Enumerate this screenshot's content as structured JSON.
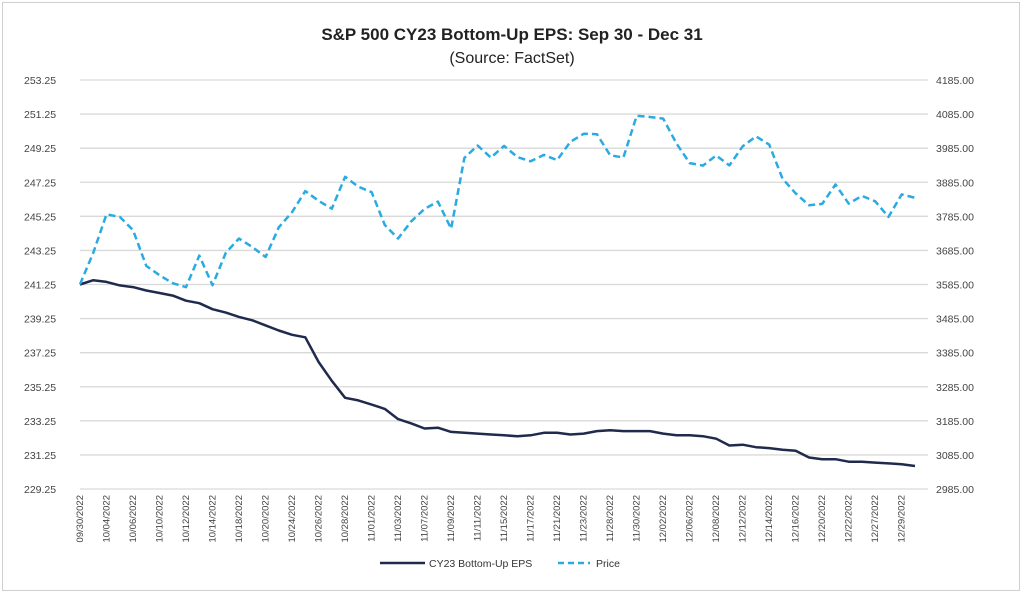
{
  "chart_data": {
    "type": "line",
    "title": "S&P 500 CY23 Bottom-Up EPS: Sep 30 - Dec 31",
    "subtitle": "(Source: FactSet)",
    "xlabel": "",
    "ylabel_left": "",
    "ylabel_right": "",
    "x": [
      "09/30/2022",
      "10/03/2022",
      "10/04/2022",
      "10/05/2022",
      "10/06/2022",
      "10/07/2022",
      "10/10/2022",
      "10/11/2022",
      "10/12/2022",
      "10/13/2022",
      "10/14/2022",
      "10/17/2022",
      "10/18/2022",
      "10/19/2022",
      "10/20/2022",
      "10/21/2022",
      "10/24/2022",
      "10/25/2022",
      "10/26/2022",
      "10/27/2022",
      "10/28/2022",
      "10/31/2022",
      "11/01/2022",
      "11/02/2022",
      "11/03/2022",
      "11/04/2022",
      "11/07/2022",
      "11/08/2022",
      "11/09/2022",
      "11/10/2022",
      "11/11/2022",
      "11/14/2022",
      "11/15/2022",
      "11/16/2022",
      "11/17/2022",
      "11/18/2022",
      "11/21/2022",
      "11/22/2022",
      "11/23/2022",
      "11/25/2022",
      "11/28/2022",
      "11/29/2022",
      "11/30/2022",
      "12/01/2022",
      "12/02/2022",
      "12/05/2022",
      "12/06/2022",
      "12/07/2022",
      "12/08/2022",
      "12/09/2022",
      "12/12/2022",
      "12/13/2022",
      "12/14/2022",
      "12/15/2022",
      "12/16/2022",
      "12/19/2022",
      "12/20/2022",
      "12/21/2022",
      "12/22/2022",
      "12/23/2022",
      "12/27/2022",
      "12/28/2022",
      "12/29/2022",
      "12/30/2022"
    ],
    "x_tick_labels": [
      "09/30/2022",
      "10/04/2022",
      "10/06/2022",
      "10/10/2022",
      "10/12/2022",
      "10/14/2022",
      "10/18/2022",
      "10/20/2022",
      "10/24/2022",
      "10/26/2022",
      "10/28/2022",
      "11/01/2022",
      "11/03/2022",
      "11/07/2022",
      "11/09/2022",
      "11/11/2022",
      "11/15/2022",
      "11/17/2022",
      "11/21/2022",
      "11/23/2022",
      "11/28/2022",
      "11/30/2022",
      "12/02/2022",
      "12/06/2022",
      "12/08/2022",
      "12/12/2022",
      "12/14/2022",
      "12/16/2022",
      "12/20/2022",
      "12/22/2022",
      "12/27/2022",
      "12/29/2022"
    ],
    "y_left": {
      "range": [
        229.25,
        253.25
      ],
      "ticks": [
        "229.25",
        "231.25",
        "233.25",
        "235.25",
        "237.25",
        "239.25",
        "241.25",
        "243.25",
        "245.25",
        "247.25",
        "249.25",
        "251.25",
        "253.25"
      ]
    },
    "y_right": {
      "range": [
        2985,
        4185
      ],
      "ticks": [
        "2985.00",
        "3085.00",
        "3185.00",
        "3285.00",
        "3385.00",
        "3485.00",
        "3585.00",
        "3685.00",
        "3785.00",
        "3885.00",
        "3985.00",
        "4085.00",
        "4185.00"
      ]
    },
    "grid": true,
    "legend_position": "bottom",
    "series": [
      {
        "name": "CY23 Bottom-Up EPS",
        "axis": "left",
        "style": "solid",
        "color": "#1f2a4d",
        "values": [
          241.25,
          241.5,
          241.4,
          241.2,
          241.1,
          240.9,
          240.75,
          240.6,
          240.3,
          240.15,
          239.8,
          239.6,
          239.35,
          239.15,
          238.85,
          238.55,
          238.3,
          238.15,
          236.7,
          235.6,
          234.6,
          234.45,
          234.2,
          233.95,
          233.35,
          233.1,
          232.8,
          232.85,
          232.6,
          232.55,
          232.5,
          232.45,
          232.4,
          232.35,
          232.4,
          232.55,
          232.55,
          232.45,
          232.5,
          232.65,
          232.7,
          232.65,
          232.65,
          232.65,
          232.5,
          232.4,
          232.4,
          232.35,
          232.2,
          231.8,
          231.85,
          231.7,
          231.65,
          231.55,
          231.5,
          231.1,
          231.0,
          231.0,
          230.85,
          230.85,
          230.8,
          230.75,
          230.7,
          230.6
        ]
      },
      {
        "name": "Price",
        "axis": "right",
        "style": "dashed",
        "color": "#29abe2",
        "values": [
          3585.62,
          3678.43,
          3790.93,
          3783.28,
          3744.52,
          3639.66,
          3612.39,
          3588.84,
          3577.03,
          3669.91,
          3583.07,
          3677.95,
          3719.98,
          3695.16,
          3665.78,
          3752.75,
          3797.34,
          3859.11,
          3830.6,
          3807.3,
          3901.06,
          3871.98,
          3856.1,
          3759.69,
          3719.89,
          3770.55,
          3806.8,
          3828.11,
          3748.57,
          3956.37,
          3992.93,
          3957.25,
          3991.73,
          3958.79,
          3946.56,
          3965.34,
          3949.94,
          4003.58,
          4027.26,
          4026.12,
          3963.94,
          3957.63,
          4080.11,
          4076.57,
          4071.7,
          3998.84,
          3941.26,
          3933.92,
          3963.51,
          3934.38,
          3990.56,
          4019.65,
          3995.32,
          3895.75,
          3852.36,
          3817.66,
          3821.62,
          3878.44,
          3822.39,
          3844.82,
          3829.25,
          3783.22,
          3849.28,
          3839.5
        ]
      }
    ]
  }
}
